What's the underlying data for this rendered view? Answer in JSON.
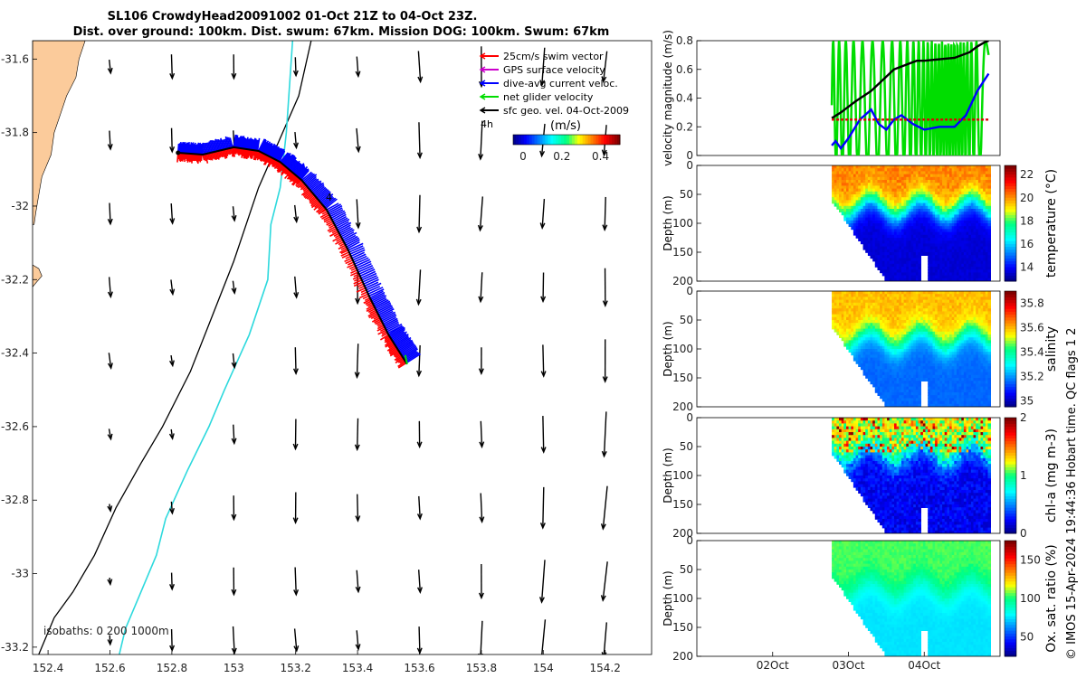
{
  "title": {
    "line1": "SL106 CrowdyHead20091002 01-Oct 21Z to 04-Oct 23Z.",
    "line2": "Dist. over ground: 100km. Dist. swum: 67km. Mission DOG: 100km. Swum: 67km"
  },
  "footer_note": "© IMOS 15-Apr-2024 19:44:36 Hobart time. QC flags 1  2",
  "colors": {
    "land": "#fbcb9b",
    "glider_red": "#ff0000",
    "glider_blue": "#0000ff",
    "net_green": "#00e000",
    "isobath_200": "#2dd9dd",
    "isobath_1000": "#000000",
    "avg_swim": "#e00000"
  },
  "chart_data": [
    {
      "id": "track_map",
      "type": "scatter",
      "xlim": [
        152.35,
        154.35
      ],
      "ylim": [
        -33.22,
        -31.55
      ],
      "x_ticks": [
        "152.4",
        "152.6",
        "152.8",
        "153",
        "153.2",
        "153.4",
        "153.6",
        "153.8",
        "154",
        "154.2"
      ],
      "y_ticks": [
        "-31.6",
        "-31.8",
        "-32",
        "-32.2",
        "-32.4",
        "-32.6",
        "-32.8",
        "-33",
        "-33.2"
      ],
      "isobaths_label": "isobaths: 0   200  1000m",
      "annotations": [
        "4h",
        "4"
      ],
      "legend": {
        "items": [
          {
            "label": "25cm/s swim vector",
            "color": "#ff0000"
          },
          {
            "label": "GPS surface velocity",
            "color": "#cc00cc"
          },
          {
            "label": "dive-avg current veloc.",
            "color": "#0000ff"
          },
          {
            "label": "net glider velocity",
            "color": "#00dd00"
          },
          {
            "label": "sfc geo. vel. 04-Oct-2009",
            "color": "#000000"
          }
        ],
        "colorbar_label": "(m/s)",
        "colorbar_ticks": [
          "0",
          "0.2",
          "0.4"
        ]
      },
      "glider_track": [
        [
          152.82,
          -31.855
        ],
        [
          152.9,
          -31.86
        ],
        [
          153.0,
          -31.84
        ],
        [
          153.08,
          -31.85
        ],
        [
          153.15,
          -31.88
        ],
        [
          153.22,
          -31.93
        ],
        [
          153.3,
          -32.01
        ],
        [
          153.37,
          -32.12
        ],
        [
          153.44,
          -32.25
        ],
        [
          153.5,
          -32.35
        ],
        [
          153.56,
          -32.43
        ]
      ],
      "isobath_200m": [
        [
          153.19,
          -31.55
        ],
        [
          153.17,
          -31.8
        ],
        [
          153.15,
          -31.95
        ],
        [
          153.12,
          -32.05
        ],
        [
          153.11,
          -32.2
        ],
        [
          153.05,
          -32.35
        ],
        [
          152.97,
          -32.5
        ],
        [
          152.92,
          -32.6
        ],
        [
          152.85,
          -32.72
        ],
        [
          152.78,
          -32.85
        ],
        [
          152.75,
          -32.95
        ],
        [
          152.7,
          -33.05
        ],
        [
          152.65,
          -33.15
        ],
        [
          152.63,
          -33.22
        ]
      ],
      "isobath_1000m": [
        [
          153.25,
          -31.55
        ],
        [
          153.21,
          -31.7
        ],
        [
          153.08,
          -31.95
        ],
        [
          153.0,
          -32.15
        ],
        [
          152.93,
          -32.3
        ],
        [
          152.86,
          -32.45
        ],
        [
          152.77,
          -32.6
        ],
        [
          152.7,
          -32.7
        ],
        [
          152.62,
          -32.82
        ],
        [
          152.55,
          -32.95
        ],
        [
          152.48,
          -33.05
        ],
        [
          152.42,
          -33.12
        ],
        [
          152.37,
          -33.22
        ]
      ],
      "coastline": [
        [
          152.35,
          -31.55
        ],
        [
          152.52,
          -31.56
        ],
        [
          152.5,
          -31.63
        ],
        [
          152.47,
          -31.7
        ],
        [
          152.42,
          -31.82
        ],
        [
          152.37,
          -31.96
        ],
        [
          152.35,
          -32.05
        ]
      ],
      "geo_vectors": {
        "lons": [
          152.6,
          152.8,
          153.0,
          153.2,
          153.4,
          153.6,
          153.8,
          154.0,
          154.2
        ],
        "lats": [
          -31.62,
          -31.82,
          -32.02,
          -32.22,
          -32.42,
          -32.62,
          -32.82,
          -33.02,
          -33.18
        ],
        "units": "degrees per unit"
      }
    },
    {
      "id": "velocity",
      "type": "line",
      "ylabel": "velocity magnitude (m/s)",
      "ylim": [
        0,
        0.8
      ],
      "y_ticks": [
        "0",
        "0.2",
        "0.4",
        "0.6",
        "0.8"
      ],
      "x_start": "2009-10-01",
      "xlim_days": [
        0,
        4
      ],
      "x_ticks": [
        "02Oct",
        "03Oct",
        "04Oct"
      ],
      "series": [
        {
          "name": "net glider velocity",
          "color": "#00dd00",
          "kind": "oscillating",
          "t0": 1.78,
          "t1": 3.85,
          "amp": [
            0.4,
            0.6
          ],
          "mean": 0.35
        },
        {
          "name": "dive-avg current veloc.",
          "color": "#0000ff",
          "x": [
            1.78,
            1.83,
            1.9,
            2.0,
            2.15,
            2.3,
            2.4,
            2.5,
            2.6,
            2.7,
            2.85,
            3.0,
            3.2,
            3.4,
            3.55,
            3.7,
            3.85
          ],
          "y": [
            0.07,
            0.1,
            0.05,
            0.12,
            0.25,
            0.32,
            0.22,
            0.18,
            0.25,
            0.28,
            0.22,
            0.18,
            0.2,
            0.2,
            0.28,
            0.45,
            0.57
          ]
        },
        {
          "name": "GPS surface velocity",
          "color": "#000000",
          "x": [
            1.78,
            1.9,
            2.1,
            2.3,
            2.5,
            2.6,
            2.8,
            2.9,
            3.0,
            3.2,
            3.4,
            3.6,
            3.7,
            3.8,
            3.85
          ],
          "y": [
            0.26,
            0.3,
            0.38,
            0.45,
            0.55,
            0.6,
            0.64,
            0.66,
            0.66,
            0.67,
            0.68,
            0.72,
            0.76,
            0.79,
            0.8
          ]
        },
        {
          "name": "25cm/s swim vector",
          "color": "#e00000",
          "x": [
            1.78,
            3.85
          ],
          "y": [
            0.25,
            0.25
          ],
          "dashed": true
        }
      ]
    },
    {
      "id": "temperature",
      "type": "heatmap",
      "ylabel": "Depth (m)",
      "cb_label": "temperature (°C)",
      "ylim": [
        0,
        200
      ],
      "y_ticks": [
        "0",
        "50",
        "100",
        "150",
        "200"
      ],
      "clim": [
        12.8,
        22.8
      ],
      "cb_ticks": [
        "14",
        "16",
        "18",
        "20",
        "22"
      ],
      "colormap": "parula",
      "profile": {
        "surface": 20.2,
        "deep": 13.5,
        "mld_m": 70,
        "var": 0.8
      }
    },
    {
      "id": "salinity",
      "type": "heatmap",
      "ylabel": "Depth (m)",
      "cb_label": "salinity",
      "ylim": [
        0,
        200
      ],
      "y_ticks": [
        "0",
        "50",
        "100",
        "150",
        "200"
      ],
      "clim": [
        34.95,
        35.9
      ],
      "cb_ticks": [
        "35",
        "35.2",
        "35.4",
        "35.6",
        "35.8"
      ],
      "colormap": "parula",
      "profile": {
        "surface": 35.6,
        "deep": 35.15,
        "mld_m": 80,
        "var": 0.06
      }
    },
    {
      "id": "chlorophyll",
      "type": "heatmap",
      "ylabel": "Depth (m)",
      "cb_label": "chl-a (mg m-3)",
      "ylim": [
        0,
        200
      ],
      "y_ticks": [
        "0",
        "50",
        "100",
        "150",
        "200"
      ],
      "clim": [
        0,
        2
      ],
      "cb_ticks": [
        "0",
        "1",
        "2"
      ],
      "colormap": "parula",
      "profile": {
        "surface": 1.2,
        "deep": 0.2,
        "mld_m": 60,
        "var": 0.5
      }
    },
    {
      "id": "oxygen",
      "type": "heatmap",
      "ylabel": "Depth (m)",
      "cb_label": "Ox. sat. ratio (%)",
      "ylim": [
        0,
        200
      ],
      "y_ticks": [
        "0",
        "50",
        "100",
        "150",
        "200"
      ],
      "clim": [
        25,
        175
      ],
      "cb_ticks": [
        "50",
        "100",
        "150"
      ],
      "colormap": "parula",
      "profile": {
        "surface": 105,
        "deep": 75,
        "mld_m": 80,
        "var": 5
      },
      "x_ticks": [
        "02Oct",
        "03Oct",
        "04Oct"
      ]
    }
  ]
}
